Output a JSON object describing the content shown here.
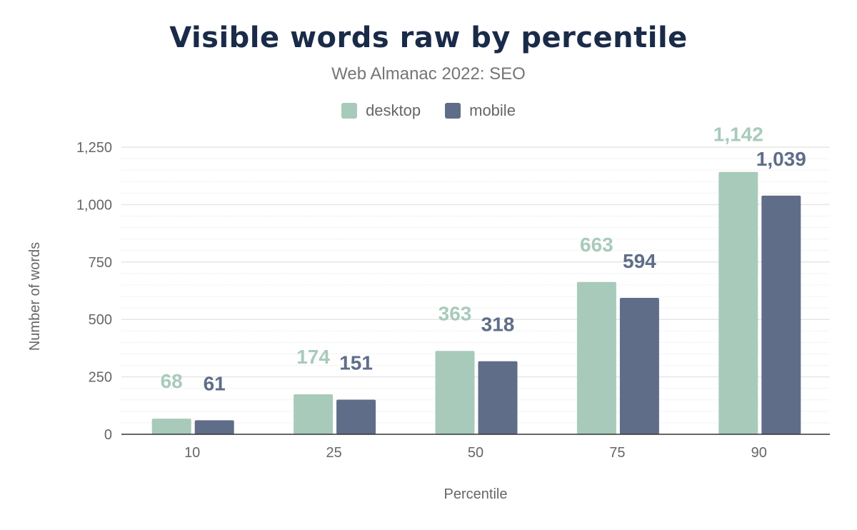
{
  "chart_data": {
    "type": "bar",
    "title": "Visible words raw by percentile",
    "subtitle": "Web Almanac 2022: SEO",
    "xlabel": "Percentile",
    "ylabel": "Number of words",
    "categories": [
      "10",
      "25",
      "50",
      "75",
      "90"
    ],
    "series": [
      {
        "name": "desktop",
        "color": "#a8cabb",
        "values": [
          68,
          174,
          363,
          663,
          1142
        ],
        "labels": [
          "68",
          "174",
          "363",
          "663",
          "1,142"
        ]
      },
      {
        "name": "mobile",
        "color": "#5f6d89",
        "values": [
          61,
          151,
          318,
          594,
          1039
        ],
        "labels": [
          "61",
          "151",
          "318",
          "594",
          "1,039"
        ]
      }
    ],
    "ylim": [
      0,
      1250
    ],
    "yticks": [
      0,
      250,
      500,
      750,
      1000,
      1250
    ],
    "ytick_labels": [
      "0",
      "250",
      "500",
      "750",
      "1,000",
      "1,250"
    ],
    "grid": true,
    "legend": "top-center"
  }
}
